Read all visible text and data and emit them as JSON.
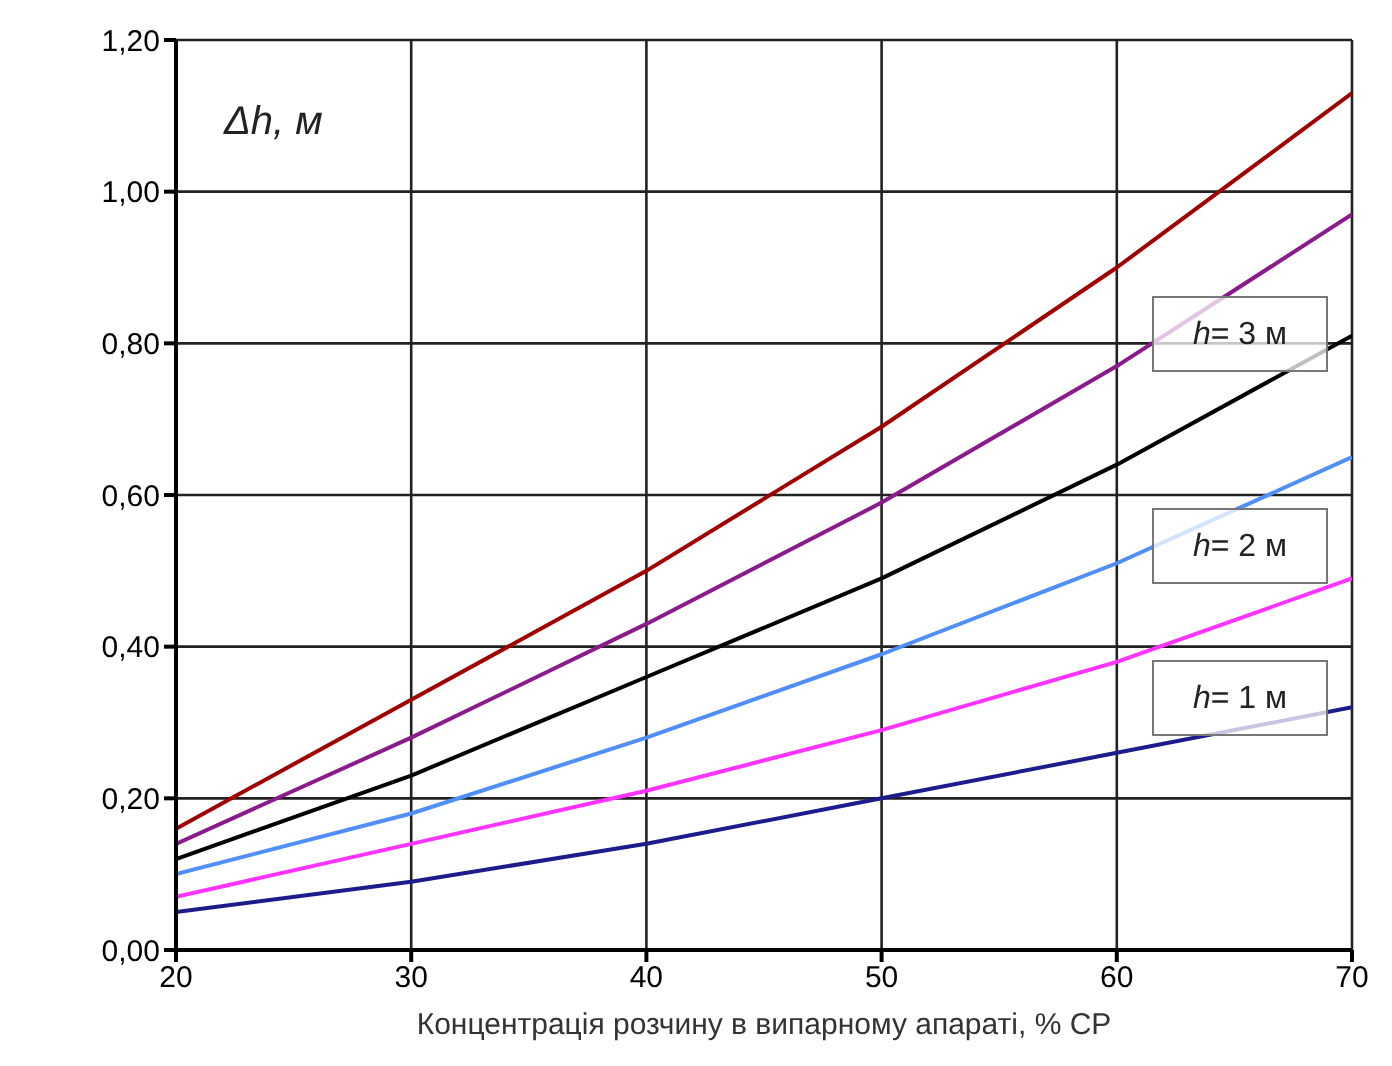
{
  "chart_data": {
    "type": "line",
    "xlabel": "Концентрація розчину в випарному апараті, % СР",
    "ylabel": "Δh, м",
    "x": [
      20,
      30,
      40,
      50,
      60,
      70
    ],
    "series": [
      {
        "color": "#a00000",
        "values": [
          0.16,
          0.33,
          0.5,
          0.69,
          0.9,
          1.13
        ]
      },
      {
        "color": "#8b1a8b",
        "values": [
          0.14,
          0.28,
          0.43,
          0.59,
          0.77,
          0.97
        ]
      },
      {
        "color": "#000000",
        "values": [
          0.12,
          0.23,
          0.36,
          0.49,
          0.64,
          0.81
        ]
      },
      {
        "color": "#4f8ff7",
        "values": [
          0.1,
          0.18,
          0.28,
          0.39,
          0.51,
          0.65
        ]
      },
      {
        "color": "#ff33ff",
        "values": [
          0.07,
          0.14,
          0.21,
          0.29,
          0.38,
          0.49
        ]
      },
      {
        "color": "#1c1c8c",
        "values": [
          0.05,
          0.09,
          0.14,
          0.2,
          0.26,
          0.32
        ]
      }
    ],
    "xlim": [
      20,
      70
    ],
    "xticks": [
      20,
      30,
      40,
      50,
      60,
      70
    ],
    "ylim": [
      0,
      1.2
    ],
    "yticks": [
      {
        "value": 0,
        "label": "0,00"
      },
      {
        "value": 0.2,
        "label": "0,20"
      },
      {
        "value": 0.4,
        "label": "0,40"
      },
      {
        "value": 0.6,
        "label": "0,60"
      },
      {
        "value": 0.8,
        "label": "0,80"
      },
      {
        "value": 1,
        "label": "1,00"
      },
      {
        "value": 1.2,
        "label": "1,20"
      }
    ],
    "grid": true,
    "marker": "none",
    "line_style": "solid",
    "annotations": [
      "h= 3 м",
      "h= 2 м",
      "h= 1 м"
    ]
  }
}
